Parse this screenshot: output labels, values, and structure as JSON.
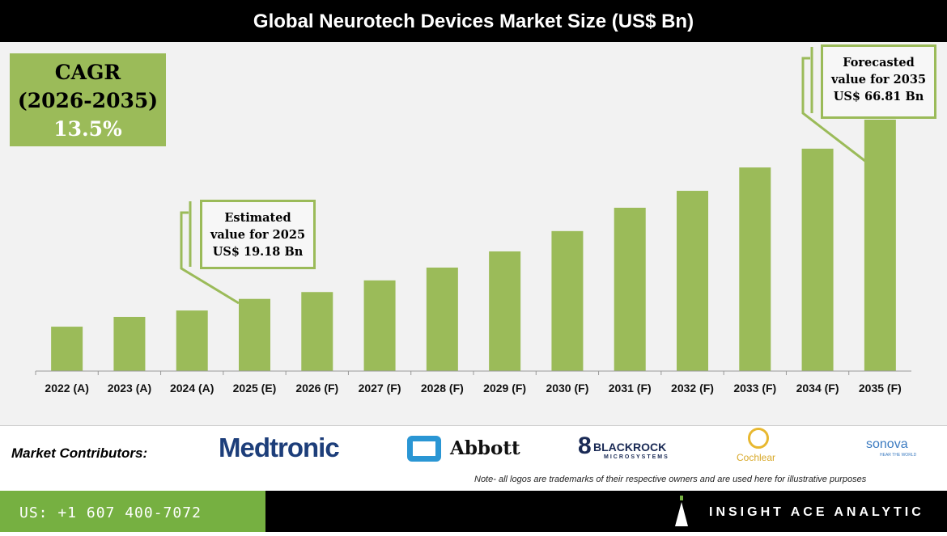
{
  "chart_data": {
    "type": "bar",
    "title": "Global Neurotech Devices Market Size (US$ Bn)",
    "categories": [
      "2022 (A)",
      "2023 (A)",
      "2024 (A)",
      "2025 (E)",
      "2026 (F)",
      "2027 (F)",
      "2028 (F)",
      "2029 (F)",
      "2030 (F)",
      "2031 (F)",
      "2032 (F)",
      "2033 (F)",
      "2034 (F)",
      "2035 (F)"
    ],
    "values": [
      11.8,
      14.4,
      16.1,
      19.18,
      21.0,
      24.1,
      27.5,
      31.8,
      37.2,
      43.4,
      47.9,
      54.1,
      59.1,
      66.81
    ],
    "ylim": [
      0,
      70
    ],
    "grid": false,
    "bar_color": "#9bbb59"
  },
  "cagr": {
    "label": "CAGR",
    "period": "(2026-2035)",
    "value": "13.5%"
  },
  "callouts": [
    {
      "line1": "Estimated",
      "line2": "value for 2025",
      "line3": "US$ 19.18 Bn"
    },
    {
      "line1": "Forecasted",
      "line2": "value for 2035",
      "line3": "US$ 66.81 Bn"
    }
  ],
  "contributors": {
    "label": "Market Contributors:",
    "logos": [
      "Medtronic",
      "Abbott",
      "BLACKROCK",
      "MICROSYSTEMS",
      "Cochlear",
      "sonova",
      "HEAR THE WORLD"
    ]
  },
  "note": "Note- all logos are trademarks of their respective owners and are used here for illustrative purposes",
  "footer": {
    "phone": "US: +1 607 400-7072",
    "brand": "INSIGHT ACE ANALYTIC"
  }
}
